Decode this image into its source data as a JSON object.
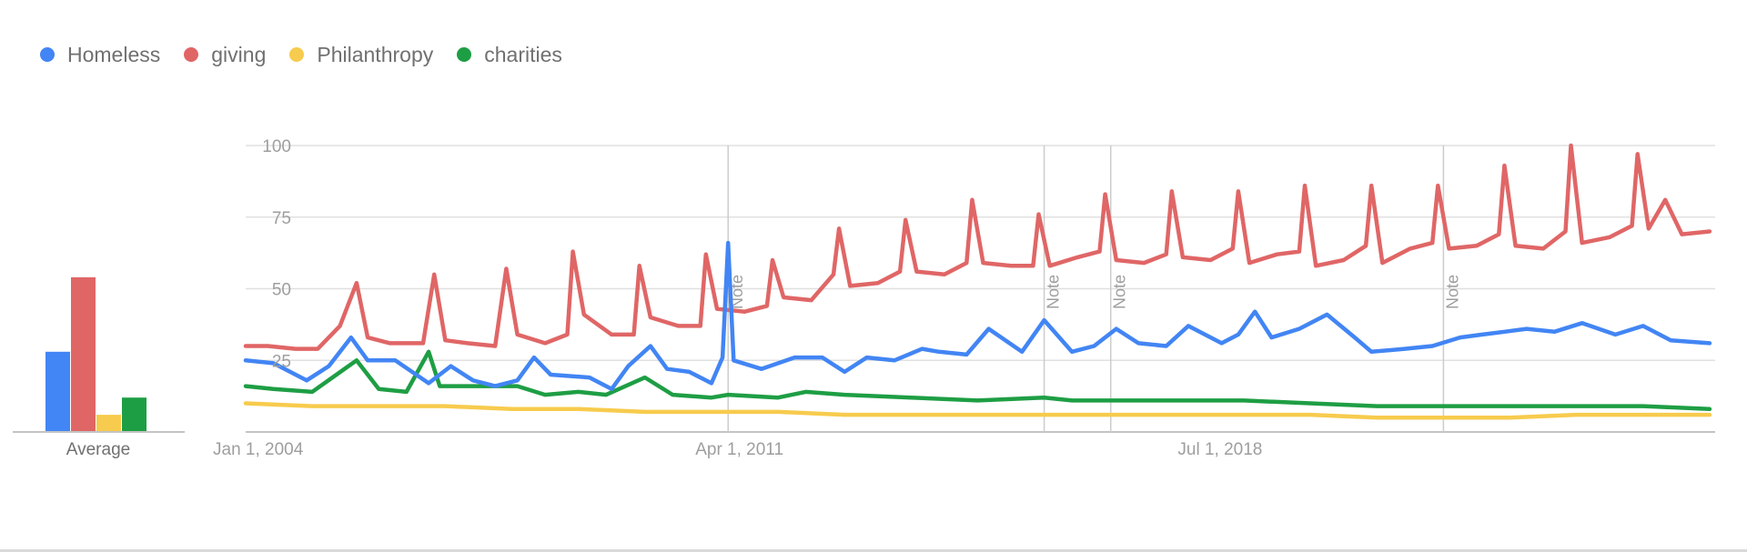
{
  "legend": [
    {
      "label": "Homeless",
      "color": "#4285f4"
    },
    {
      "label": "giving",
      "color": "#e06666"
    },
    {
      "label": "Philanthropy",
      "color": "#f7cb4d"
    },
    {
      "label": "charities",
      "color": "#1e9e44"
    }
  ],
  "average_panel": {
    "label": "Average",
    "values": [
      28,
      54,
      6,
      12
    ]
  },
  "notes": [
    {
      "label": "Note",
      "x": "2011-04"
    },
    {
      "label": "Note",
      "x": "2016-01"
    },
    {
      "label": "Note",
      "x": "2017-01"
    },
    {
      "label": "Note",
      "x": "2022-01"
    }
  ],
  "chart_data": {
    "type": "line",
    "title": "",
    "xlabel": "",
    "ylabel": "",
    "ylim": [
      0,
      100
    ],
    "yticks": [
      25,
      50,
      75,
      100
    ],
    "gridlines": true,
    "x_tick_labels": [
      {
        "label": "Jan 1, 2004",
        "x": "2004-01"
      },
      {
        "label": "Apr 1, 2011",
        "x": "2011-04"
      },
      {
        "label": "Jul 1, 2018",
        "x": "2018-07"
      }
    ],
    "x_range": [
      "2004-01",
      "2026-02"
    ],
    "series": [
      {
        "name": "Homeless",
        "color": "#4285f4",
        "points": [
          [
            "2004-01",
            25
          ],
          [
            "2004-06",
            24
          ],
          [
            "2004-12",
            18
          ],
          [
            "2005-04",
            23
          ],
          [
            "2005-08",
            33
          ],
          [
            "2005-11",
            25
          ],
          [
            "2006-04",
            25
          ],
          [
            "2006-10",
            17
          ],
          [
            "2007-02",
            23
          ],
          [
            "2007-06",
            18
          ],
          [
            "2007-10",
            16
          ],
          [
            "2008-02",
            18
          ],
          [
            "2008-05",
            26
          ],
          [
            "2008-08",
            20
          ],
          [
            "2009-03",
            19
          ],
          [
            "2009-07",
            15
          ],
          [
            "2009-10",
            23
          ],
          [
            "2010-02",
            30
          ],
          [
            "2010-05",
            22
          ],
          [
            "2010-09",
            21
          ],
          [
            "2011-01",
            17
          ],
          [
            "2011-03",
            26
          ],
          [
            "2011-04",
            66
          ],
          [
            "2011-05",
            25
          ],
          [
            "2011-10",
            22
          ],
          [
            "2012-04",
            26
          ],
          [
            "2012-09",
            26
          ],
          [
            "2013-01",
            21
          ],
          [
            "2013-05",
            26
          ],
          [
            "2013-10",
            25
          ],
          [
            "2014-03",
            29
          ],
          [
            "2014-06",
            28
          ],
          [
            "2014-11",
            27
          ],
          [
            "2015-03",
            36
          ],
          [
            "2015-09",
            28
          ],
          [
            "2016-01",
            39
          ],
          [
            "2016-06",
            28
          ],
          [
            "2016-10",
            30
          ],
          [
            "2017-02",
            36
          ],
          [
            "2017-06",
            31
          ],
          [
            "2017-11",
            30
          ],
          [
            "2018-03",
            37
          ],
          [
            "2018-09",
            31
          ],
          [
            "2018-12",
            34
          ],
          [
            "2019-03",
            42
          ],
          [
            "2019-06",
            33
          ],
          [
            "2019-11",
            36
          ],
          [
            "2020-04",
            41
          ],
          [
            "2020-09",
            33
          ],
          [
            "2020-12",
            28
          ],
          [
            "2021-06",
            29
          ],
          [
            "2021-11",
            30
          ],
          [
            "2022-04",
            33
          ],
          [
            "2022-08",
            34
          ],
          [
            "2022-12",
            35
          ],
          [
            "2023-04",
            36
          ],
          [
            "2023-09",
            35
          ],
          [
            "2024-02",
            38
          ],
          [
            "2024-08",
            34
          ],
          [
            "2025-01",
            37
          ],
          [
            "2025-06",
            32
          ],
          [
            "2026-01",
            31
          ]
        ]
      },
      {
        "name": "giving",
        "color": "#e06666",
        "points": [
          [
            "2004-01",
            30
          ],
          [
            "2004-05",
            30
          ],
          [
            "2004-10",
            29
          ],
          [
            "2005-02",
            29
          ],
          [
            "2005-06",
            37
          ],
          [
            "2005-09",
            52
          ],
          [
            "2005-11",
            33
          ],
          [
            "2006-03",
            31
          ],
          [
            "2006-09",
            31
          ],
          [
            "2006-11",
            55
          ],
          [
            "2007-01",
            32
          ],
          [
            "2007-05",
            31
          ],
          [
            "2007-10",
            30
          ],
          [
            "2007-12",
            57
          ],
          [
            "2008-02",
            34
          ],
          [
            "2008-07",
            31
          ],
          [
            "2008-11",
            34
          ],
          [
            "2008-12",
            63
          ],
          [
            "2009-02",
            41
          ],
          [
            "2009-07",
            34
          ],
          [
            "2009-11",
            34
          ],
          [
            "2009-12",
            58
          ],
          [
            "2010-02",
            40
          ],
          [
            "2010-07",
            37
          ],
          [
            "2010-11",
            37
          ],
          [
            "2010-12",
            62
          ],
          [
            "2011-02",
            43
          ],
          [
            "2011-07",
            42
          ],
          [
            "2011-11",
            44
          ],
          [
            "2011-12",
            60
          ],
          [
            "2012-02",
            47
          ],
          [
            "2012-07",
            46
          ],
          [
            "2012-11",
            55
          ],
          [
            "2012-12",
            71
          ],
          [
            "2013-02",
            51
          ],
          [
            "2013-07",
            52
          ],
          [
            "2013-11",
            56
          ],
          [
            "2013-12",
            74
          ],
          [
            "2014-02",
            56
          ],
          [
            "2014-07",
            55
          ],
          [
            "2014-11",
            59
          ],
          [
            "2014-12",
            81
          ],
          [
            "2015-02",
            59
          ],
          [
            "2015-07",
            58
          ],
          [
            "2015-11",
            58
          ],
          [
            "2015-12",
            76
          ],
          [
            "2016-02",
            58
          ],
          [
            "2016-07",
            61
          ],
          [
            "2016-11",
            63
          ],
          [
            "2016-12",
            83
          ],
          [
            "2017-02",
            60
          ],
          [
            "2017-07",
            59
          ],
          [
            "2017-11",
            62
          ],
          [
            "2017-12",
            84
          ],
          [
            "2018-02",
            61
          ],
          [
            "2018-07",
            60
          ],
          [
            "2018-11",
            64
          ],
          [
            "2018-12",
            84
          ],
          [
            "2019-02",
            59
          ],
          [
            "2019-07",
            62
          ],
          [
            "2019-11",
            63
          ],
          [
            "2019-12",
            86
          ],
          [
            "2020-02",
            58
          ],
          [
            "2020-07",
            60
          ],
          [
            "2020-11",
            65
          ],
          [
            "2020-12",
            86
          ],
          [
            "2021-02",
            59
          ],
          [
            "2021-07",
            64
          ],
          [
            "2021-11",
            66
          ],
          [
            "2021-12",
            86
          ],
          [
            "2022-02",
            64
          ],
          [
            "2022-07",
            65
          ],
          [
            "2022-11",
            69
          ],
          [
            "2022-12",
            93
          ],
          [
            "2023-02",
            65
          ],
          [
            "2023-07",
            64
          ],
          [
            "2023-11",
            70
          ],
          [
            "2023-12",
            100
          ],
          [
            "2024-02",
            66
          ],
          [
            "2024-07",
            68
          ],
          [
            "2024-11",
            72
          ],
          [
            "2024-12",
            97
          ],
          [
            "2025-02",
            71
          ],
          [
            "2025-05",
            81
          ],
          [
            "2025-08",
            69
          ],
          [
            "2026-01",
            70
          ]
        ]
      },
      {
        "name": "Philanthropy",
        "color": "#f7cb4d",
        "points": [
          [
            "2004-01",
            10
          ],
          [
            "2005-01",
            9
          ],
          [
            "2006-01",
            9
          ],
          [
            "2007-01",
            9
          ],
          [
            "2008-01",
            8
          ],
          [
            "2009-01",
            8
          ],
          [
            "2010-01",
            7
          ],
          [
            "2011-01",
            7
          ],
          [
            "2011-04",
            7
          ],
          [
            "2012-01",
            7
          ],
          [
            "2013-01",
            6
          ],
          [
            "2014-01",
            6
          ],
          [
            "2015-01",
            6
          ],
          [
            "2016-01",
            6
          ],
          [
            "2017-01",
            6
          ],
          [
            "2018-01",
            6
          ],
          [
            "2019-01",
            6
          ],
          [
            "2020-01",
            6
          ],
          [
            "2021-01",
            5
          ],
          [
            "2022-01",
            5
          ],
          [
            "2023-01",
            5
          ],
          [
            "2024-01",
            6
          ],
          [
            "2025-01",
            6
          ],
          [
            "2026-01",
            6
          ]
        ]
      },
      {
        "name": "charities",
        "color": "#1e9e44",
        "points": [
          [
            "2004-01",
            16
          ],
          [
            "2004-06",
            15
          ],
          [
            "2005-01",
            14
          ],
          [
            "2005-09",
            25
          ],
          [
            "2006-01",
            15
          ],
          [
            "2006-06",
            14
          ],
          [
            "2006-10",
            28
          ],
          [
            "2006-12",
            16
          ],
          [
            "2007-06",
            16
          ],
          [
            "2008-02",
            16
          ],
          [
            "2008-07",
            13
          ],
          [
            "2009-01",
            14
          ],
          [
            "2009-06",
            13
          ],
          [
            "2010-01",
            19
          ],
          [
            "2010-06",
            13
          ],
          [
            "2011-01",
            12
          ],
          [
            "2011-04",
            13
          ],
          [
            "2012-01",
            12
          ],
          [
            "2012-06",
            14
          ],
          [
            "2013-01",
            13
          ],
          [
            "2014-01",
            12
          ],
          [
            "2015-01",
            11
          ],
          [
            "2016-01",
            12
          ],
          [
            "2016-06",
            11
          ],
          [
            "2017-01",
            11
          ],
          [
            "2018-01",
            11
          ],
          [
            "2019-01",
            11
          ],
          [
            "2020-01",
            10
          ],
          [
            "2021-01",
            9
          ],
          [
            "2022-01",
            9
          ],
          [
            "2023-01",
            9
          ],
          [
            "2024-01",
            9
          ],
          [
            "2025-01",
            9
          ],
          [
            "2026-01",
            8
          ]
        ]
      }
    ]
  }
}
